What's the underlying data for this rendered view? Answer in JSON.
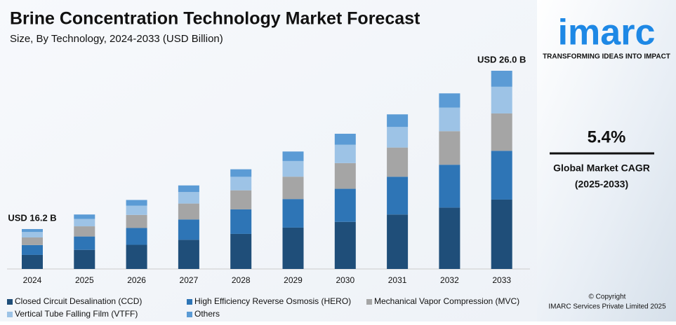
{
  "chart_data": {
    "type": "bar",
    "stacked": true,
    "title": "Brine Concentration Technology Market Forecast",
    "subtitle": "Size, By Technology, 2024-2033 (USD Billion)",
    "categories": [
      "2024",
      "2025",
      "2026",
      "2027",
      "2028",
      "2029",
      "2030",
      "2031",
      "2032",
      "2033"
    ],
    "series": [
      {
        "name": "Closed Circuit Desalination (CCD)",
        "color": "#1f4e79",
        "values": [
          5.7,
          6.0,
          6.3,
          6.6,
          7.0,
          7.4,
          7.7,
          8.2,
          8.6,
          9.1
        ]
      },
      {
        "name": "High Efficiency Reverse Osmosis (HERO)",
        "color": "#2e75b6",
        "values": [
          4.0,
          4.2,
          4.4,
          4.6,
          4.9,
          5.1,
          5.4,
          5.7,
          6.0,
          6.4
        ]
      },
      {
        "name": "Mechanical Vapor Compression (MVC)",
        "color": "#a5a5a5",
        "values": [
          3.1,
          3.2,
          3.4,
          3.6,
          3.8,
          4.0,
          4.2,
          4.4,
          4.7,
          4.9
        ]
      },
      {
        "name": "Vertical Tube Falling Film (VTFF)",
        "color": "#9dc3e6",
        "values": [
          2.2,
          2.3,
          2.4,
          2.6,
          2.7,
          2.8,
          3.0,
          3.1,
          3.3,
          3.5
        ]
      },
      {
        "name": "Others",
        "color": "#5b9bd5",
        "values": [
          1.2,
          1.4,
          1.5,
          1.5,
          1.5,
          1.7,
          1.8,
          1.9,
          2.0,
          2.1
        ]
      }
    ],
    "annotations": [
      "USD 16.2 B",
      "USD 26.0 B"
    ]
  },
  "sidebar": {
    "logo": "imarc",
    "tagline": "TRANSFORMING IDEAS INTO IMPACT",
    "cagr": "5.4%",
    "cagr_label": "Global Market CAGR",
    "cagr_period": "(2025-2033)",
    "copyright": "© Copyright",
    "company": "IMARC Services Private Limited 2025"
  }
}
